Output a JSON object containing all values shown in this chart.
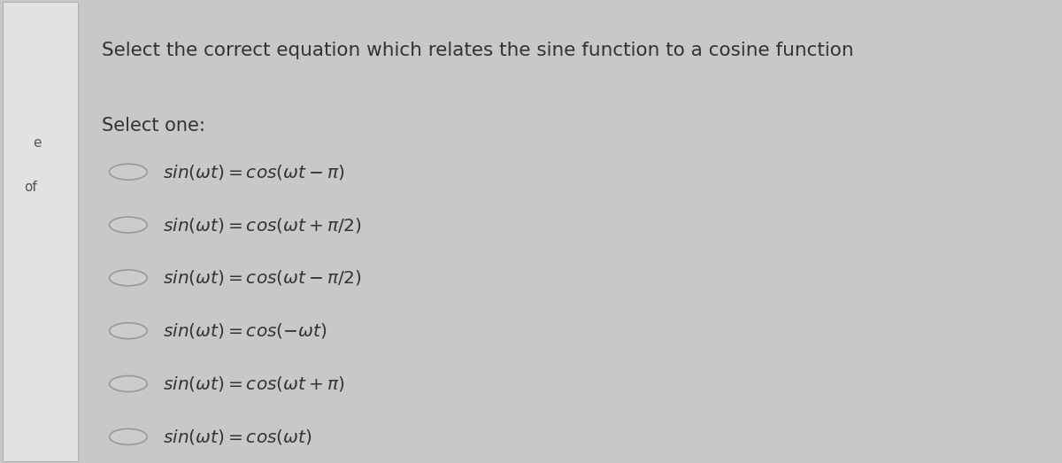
{
  "title": "Select the correct equation which relates the sine function to a cosine function",
  "select_one_label": "Select one:",
  "options": [
    "$sin(\\omega t) = cos(\\omega t - \\pi)$",
    "$sin(\\omega t) = cos(\\omega t + \\pi/2)$",
    "$sin(\\omega t) = cos(\\omega t - \\pi/2)$",
    "$sin(\\omega t) = cos(-\\omega t)$",
    "$sin(\\omega t) = cos(\\omega t + \\pi)$",
    "$sin(\\omega t) = cos(\\omega t)$"
  ],
  "bg_color": "#c8c8c8",
  "panel_color": "#d0d0d0",
  "sidebar_color": "#e2e2e2",
  "sidebar_border_color": "#b0b0b0",
  "title_color": "#333333",
  "text_color": "#333333",
  "radio_edge_color": "#999999",
  "radio_fill_color": "#cccccc",
  "title_fontsize": 15.5,
  "option_fontsize": 14.5,
  "label_fontsize": 15
}
